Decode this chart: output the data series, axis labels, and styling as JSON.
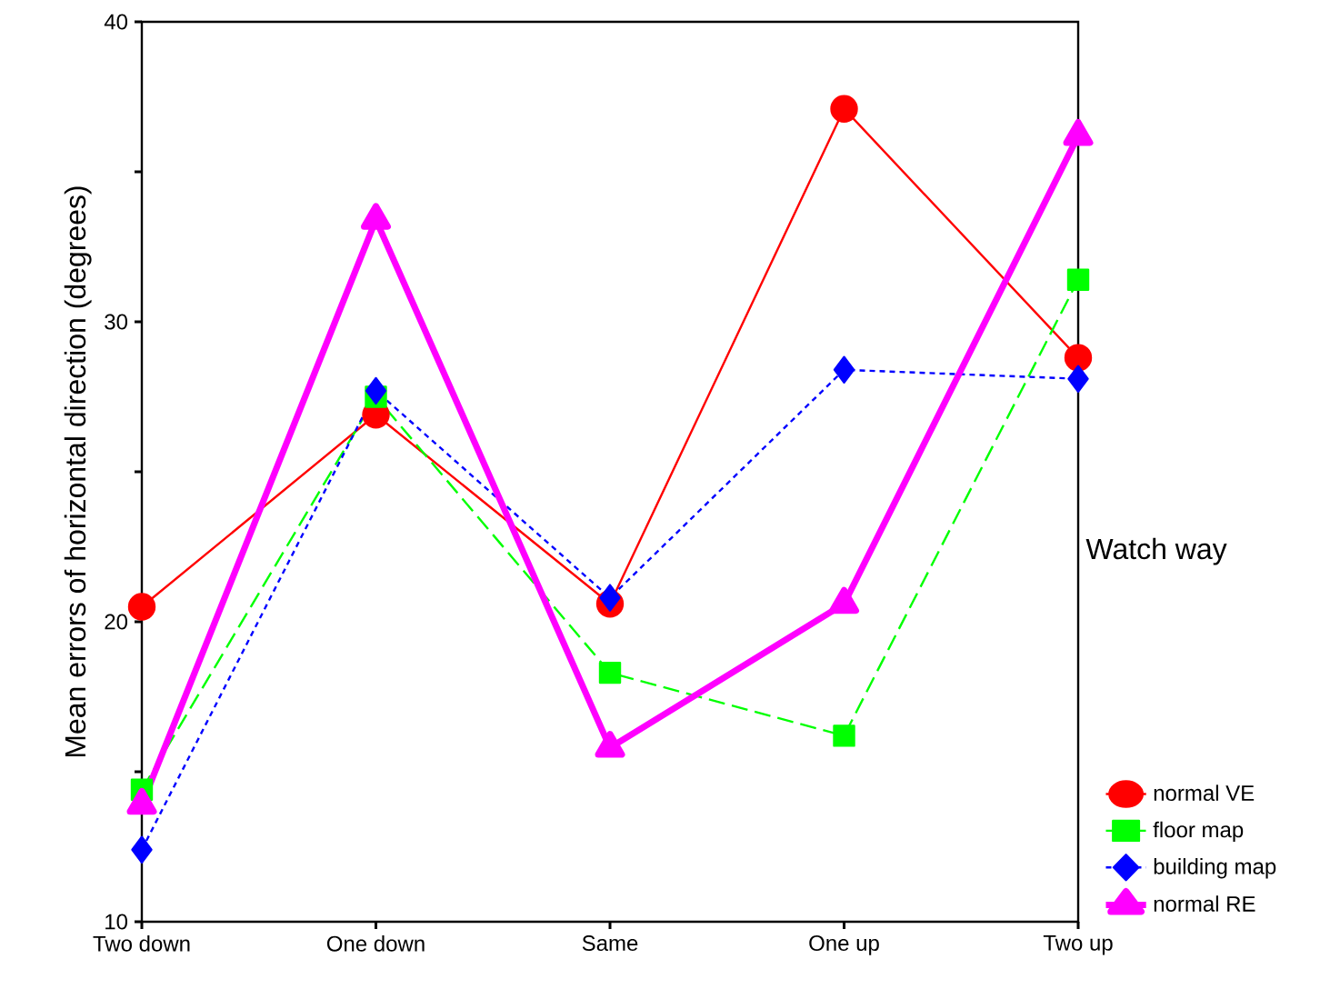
{
  "chart_data": {
    "type": "line",
    "ylabel": "Mean errors of horizontal direction (degrees)",
    "legend_title": "Watch way",
    "legend": "right",
    "categories": [
      "Two down",
      "One down",
      "Same",
      "One up",
      "Two up"
    ],
    "ylim": [
      10,
      40
    ],
    "yticks": [
      10,
      {
        "value": 15,
        "label": null
      },
      20,
      {
        "value": 25,
        "label": null
      },
      30,
      {
        "value": 35,
        "label": null
      },
      40
    ],
    "series": [
      {
        "name": "normal VE",
        "color": "#ff0000",
        "marker": "circle",
        "line_style": "solid",
        "values": [
          20.5,
          26.9,
          20.6,
          37.1,
          28.8
        ]
      },
      {
        "name": "floor map",
        "color": "#00ff00",
        "marker": "square",
        "line_style": "dashed",
        "values": [
          14.4,
          27.5,
          18.3,
          16.2,
          31.4
        ]
      },
      {
        "name": "building map",
        "color": "#0000ff",
        "marker": "diamond",
        "line_style": "dotted",
        "values": [
          12.4,
          27.7,
          20.8,
          28.4,
          28.1
        ]
      },
      {
        "name": "normal RE",
        "color": "#ff00ff",
        "marker": "triangle",
        "line_style": "solid",
        "values": [
          13.9,
          33.4,
          15.8,
          20.6,
          36.2
        ]
      }
    ]
  }
}
